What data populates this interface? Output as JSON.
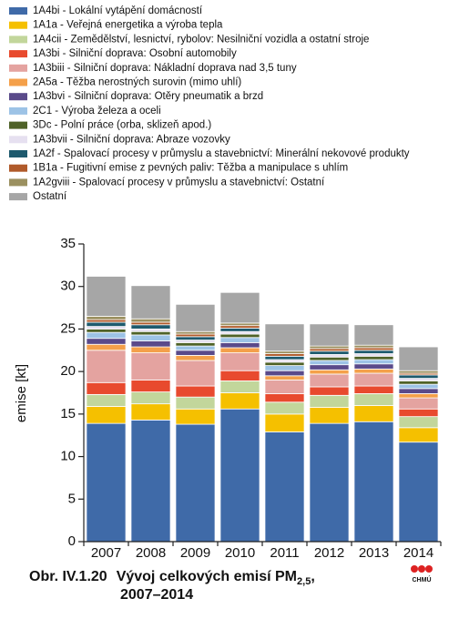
{
  "chart_data": {
    "type": "bar",
    "stacked": true,
    "y_label": "emise [kt]",
    "caption_prefix": "Obr. IV.1.20",
    "caption_title": "Vývoj celkových emisí PM",
    "caption_subscript": "2,5",
    "caption_suffix": ",",
    "caption_line2": "2007–2014",
    "logo_text": "CHMÚ",
    "categories": [
      "2007",
      "2008",
      "2009",
      "2010",
      "2011",
      "2012",
      "2013",
      "2014"
    ],
    "ylim": [
      0,
      35
    ],
    "yticks": [
      0,
      5,
      10,
      15,
      20,
      25,
      30,
      35
    ],
    "series": [
      {
        "name": "1A4bi - Lokální vytápění domácností",
        "color": "#3f6aa8",
        "values": [
          13.9,
          14.3,
          13.8,
          15.6,
          12.9,
          13.9,
          14.1,
          11.7
        ]
      },
      {
        "name": "1A1a - Veřejná energetika a výroba tepla",
        "color": "#f5c000",
        "values": [
          2.0,
          1.9,
          1.8,
          1.9,
          2.1,
          1.9,
          1.9,
          1.7
        ]
      },
      {
        "name": "1A4cii - Zemědělství, lesnictví, rybolov: Nesilniční vozidla a ostatní stroje",
        "color": "#c2d69b",
        "values": [
          1.4,
          1.4,
          1.4,
          1.4,
          1.4,
          1.4,
          1.4,
          1.3
        ]
      },
      {
        "name": "1A3bi - Silniční doprava: Osobní automobily",
        "color": "#e84a2e",
        "values": [
          1.4,
          1.4,
          1.3,
          1.2,
          1.0,
          1.0,
          0.9,
          0.9
        ]
      },
      {
        "name": "1A3biii - Silniční doprava: Nákladní doprava nad 3,5 tuny",
        "color": "#e4a3a0",
        "values": [
          3.8,
          3.2,
          3.0,
          2.1,
          1.6,
          1.5,
          1.5,
          1.3
        ]
      },
      {
        "name": "2A5a - Těžba nerostných surovin (mimo uhlí)",
        "color": "#f4a04a",
        "values": [
          0.7,
          0.7,
          0.6,
          0.6,
          0.5,
          0.5,
          0.5,
          0.5
        ]
      },
      {
        "name": "1A3bvi - Silniční doprava: Otěry pneumatik a brzd",
        "color": "#5a4a8a",
        "values": [
          0.7,
          0.7,
          0.6,
          0.6,
          0.6,
          0.6,
          0.6,
          0.6
        ]
      },
      {
        "name": "2C1 - Výroba železa a oceli",
        "color": "#9dc3e6",
        "values": [
          0.7,
          0.7,
          0.5,
          0.6,
          0.6,
          0.5,
          0.5,
          0.5
        ]
      },
      {
        "name": "3Dc - Polní práce (orba, sklizeň apod.)",
        "color": "#4f6228",
        "values": [
          0.4,
          0.4,
          0.4,
          0.4,
          0.4,
          0.4,
          0.4,
          0.4
        ]
      },
      {
        "name": "1A3bvii - Silniční doprava: Abraze vozovky",
        "color": "#e6e0f0",
        "values": [
          0.3,
          0.3,
          0.3,
          0.3,
          0.3,
          0.3,
          0.3,
          0.3
        ]
      },
      {
        "name": "1A2f - Spalovací procesy v průmyslu a stavebnictví: Minerální nekovové produkty",
        "color": "#1e5a6e",
        "values": [
          0.5,
          0.5,
          0.4,
          0.4,
          0.4,
          0.4,
          0.4,
          0.4
        ]
      },
      {
        "name": "1B1a - Fugitivní emise z pevných paliv: Těžba a manipulace s uhlím",
        "color": "#b05a2a",
        "values": [
          0.3,
          0.3,
          0.3,
          0.3,
          0.3,
          0.3,
          0.3,
          0.2
        ]
      },
      {
        "name": "1A2gviii - Spalovací procesy v průmyslu a stavebnictví: Ostatní",
        "color": "#9b9060",
        "values": [
          0.4,
          0.4,
          0.3,
          0.3,
          0.3,
          0.3,
          0.3,
          0.3
        ]
      },
      {
        "name": "Ostatní",
        "color": "#a6a6a6",
        "values": [
          4.7,
          3.9,
          3.2,
          3.6,
          3.2,
          2.6,
          2.4,
          2.8
        ]
      }
    ]
  }
}
